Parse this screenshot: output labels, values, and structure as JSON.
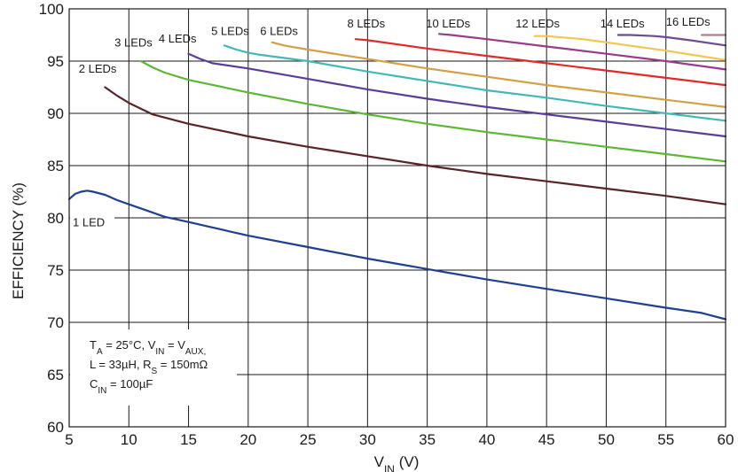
{
  "chart_data": {
    "type": "line",
    "xlabel": {
      "main": "V",
      "sub": "IN",
      "unit": " (V)"
    },
    "ylabel": "EFFICIENCY (%)",
    "xlim": [
      5,
      60
    ],
    "ylim": [
      60,
      100
    ],
    "xticks": [
      5,
      10,
      15,
      20,
      25,
      30,
      35,
      40,
      45,
      50,
      55,
      60
    ],
    "yticks": [
      60,
      65,
      70,
      75,
      80,
      85,
      90,
      95,
      100
    ],
    "grid": true,
    "conditions": [
      [
        {
          "t": "T"
        },
        {
          "t": "A",
          "sub": true
        },
        {
          "t": " = 25°C, V"
        },
        {
          "t": "IN",
          "sub": true
        },
        {
          "t": " = V"
        },
        {
          "t": "AUX,",
          "sub": true
        }
      ],
      [
        {
          "t": "L = 33µH, R"
        },
        {
          "t": "S",
          "sub": true
        },
        {
          "t": " = 150mΩ"
        }
      ],
      [
        {
          "t": "C"
        },
        {
          "t": "IN",
          "sub": true
        },
        {
          "t": " = 100µF"
        }
      ]
    ],
    "series": [
      {
        "name": "1 LED",
        "color": "#1f3f8f",
        "x": [
          5,
          5.5,
          6,
          6.5,
          7,
          8,
          9,
          10,
          12,
          13,
          15,
          20,
          25,
          30,
          35,
          40,
          45,
          50,
          55,
          58,
          60
        ],
        "y": [
          81.8,
          82.3,
          82.5,
          82.6,
          82.5,
          82.2,
          81.7,
          81.3,
          80.5,
          80.1,
          79.6,
          78.3,
          77.2,
          76.1,
          75.1,
          74.1,
          73.2,
          72.3,
          71.4,
          70.9,
          70.3
        ]
      },
      {
        "name": "2 LEDs",
        "color": "#5a2327",
        "x": [
          8,
          9,
          10,
          12,
          15,
          20,
          25,
          30,
          35,
          40,
          45,
          50,
          55,
          60
        ],
        "y": [
          92.5,
          91.7,
          91.0,
          89.9,
          89.0,
          87.8,
          86.8,
          85.9,
          85.0,
          84.2,
          83.5,
          82.8,
          82.1,
          81.3
        ]
      },
      {
        "name": "3 LEDs",
        "color": "#5bb734",
        "x": [
          11,
          12,
          13,
          15,
          20,
          25,
          30,
          35,
          40,
          45,
          50,
          55,
          60
        ],
        "y": [
          95.0,
          94.4,
          93.9,
          93.2,
          92.0,
          90.9,
          89.9,
          89.0,
          88.2,
          87.5,
          86.8,
          86.1,
          85.4
        ]
      },
      {
        "name": "4 LEDs",
        "color": "#5a3d96",
        "x": [
          15,
          16,
          17,
          20,
          25,
          30,
          35,
          40,
          45,
          50,
          55,
          60
        ],
        "y": [
          95.7,
          95.2,
          94.8,
          94.3,
          93.3,
          92.3,
          91.4,
          90.6,
          89.9,
          89.2,
          88.5,
          87.8
        ]
      },
      {
        "name": "5 LEDs",
        "color": "#40b9b6",
        "x": [
          18,
          19,
          20,
          21,
          25,
          30,
          35,
          40,
          45,
          50,
          55,
          60
        ],
        "y": [
          96.5,
          96.1,
          95.8,
          95.6,
          95.0,
          94.0,
          93.1,
          92.2,
          91.5,
          90.7,
          90.0,
          89.3
        ]
      },
      {
        "name": "6 LEDs",
        "color": "#d3a045",
        "x": [
          22,
          23,
          24,
          25,
          30,
          35,
          40,
          45,
          50,
          55,
          60
        ],
        "y": [
          96.8,
          96.5,
          96.3,
          96.1,
          95.2,
          94.3,
          93.5,
          92.7,
          92.0,
          91.3,
          90.6
        ]
      },
      {
        "name": "8 LEDs",
        "color": "#e02a28",
        "x": [
          29,
          30,
          35,
          40,
          45,
          50,
          55,
          60
        ],
        "y": [
          97.1,
          97.0,
          96.2,
          95.5,
          94.8,
          94.1,
          93.4,
          92.7
        ]
      },
      {
        "name": "10 LEDs",
        "color": "#993a8c",
        "x": [
          36,
          37,
          40,
          45,
          50,
          55,
          60
        ],
        "y": [
          97.6,
          97.5,
          97.1,
          96.4,
          95.7,
          95.0,
          94.2
        ]
      },
      {
        "name": "12 LEDs",
        "color": "#f2c64e",
        "x": [
          44,
          45,
          48,
          50,
          55,
          60
        ],
        "y": [
          97.4,
          97.4,
          97.1,
          96.8,
          96.0,
          95.1
        ]
      },
      {
        "name": "14 LEDs",
        "color": "#6d4b8f",
        "x": [
          51,
          52,
          54,
          55,
          57,
          60
        ],
        "y": [
          97.5,
          97.5,
          97.4,
          97.3,
          97.0,
          96.5
        ]
      },
      {
        "name": "16 LEDs",
        "color": "#b07a90",
        "x": [
          58,
          59,
          60
        ],
        "y": [
          97.5,
          97.5,
          97.5
        ]
      }
    ]
  }
}
